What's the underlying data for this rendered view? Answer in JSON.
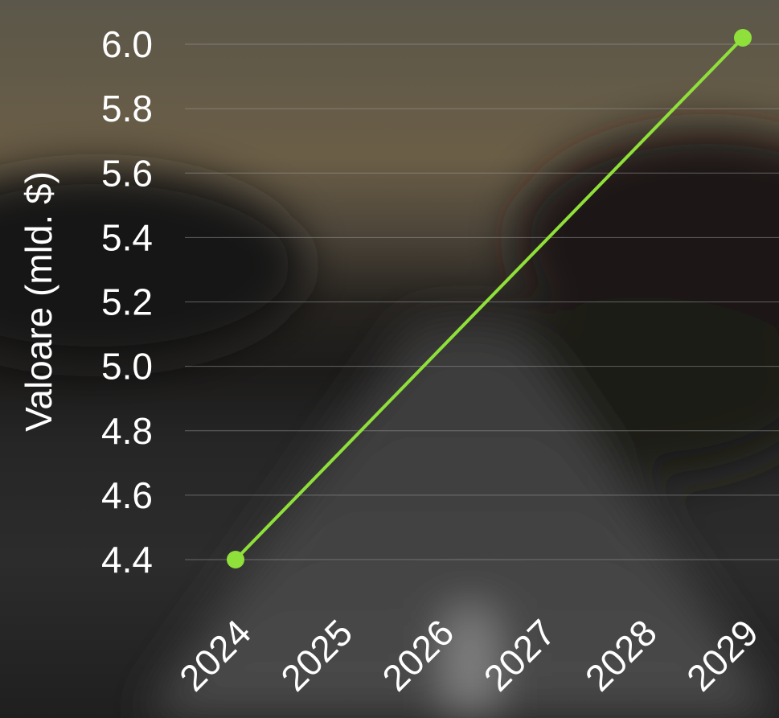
{
  "chart_data": {
    "type": "line",
    "title": "",
    "xlabel": "",
    "ylabel": "Valoare (mld. $)",
    "x": [
      "2024",
      "2025",
      "2026",
      "2027",
      "2028",
      "2029"
    ],
    "series": [
      {
        "values": [
          4.4,
          null,
          null,
          null,
          null,
          6.02
        ]
      }
    ],
    "ylim": [
      4.4,
      6.0
    ],
    "yticks": [
      "4.4",
      "4.6",
      "4.8",
      "5.0",
      "5.2",
      "5.4",
      "5.6",
      "5.8",
      "6.0"
    ],
    "grid": true,
    "legend": "none",
    "colors": {
      "line": "#8fe03a",
      "grid": "#9a9a9a",
      "text": "#ffffff"
    }
  }
}
